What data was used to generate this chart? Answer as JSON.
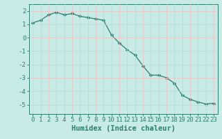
{
  "x": [
    0,
    1,
    2,
    3,
    4,
    5,
    6,
    7,
    8,
    9,
    10,
    11,
    12,
    13,
    14,
    15,
    16,
    17,
    18,
    19,
    20,
    21,
    22,
    23
  ],
  "y": [
    1.1,
    1.3,
    1.7,
    1.9,
    1.7,
    1.8,
    1.6,
    1.5,
    1.4,
    1.3,
    0.2,
    -0.4,
    -0.9,
    -1.3,
    -2.1,
    -2.8,
    -2.8,
    -3.0,
    -3.4,
    -4.3,
    -4.6,
    -4.8,
    -4.95,
    -4.9
  ],
  "xlabel": "Humidex (Indice chaleur)",
  "xlim": [
    -0.5,
    23.5
  ],
  "ylim": [
    -5.7,
    2.5
  ],
  "yticks": [
    -5,
    -4,
    -3,
    -2,
    -1,
    0,
    1,
    2
  ],
  "xticks": [
    0,
    1,
    2,
    3,
    4,
    5,
    6,
    7,
    8,
    9,
    10,
    11,
    12,
    13,
    14,
    15,
    16,
    17,
    18,
    19,
    20,
    21,
    22,
    23
  ],
  "line_color": "#2E7D6E",
  "marker": "D",
  "marker_size": 2.2,
  "bg_color": "#C8EBE8",
  "plot_bg_color": "#C8EBE8",
  "grid_color": "#E8C8C8",
  "axes_color": "#2E7D6E",
  "tick_label_color": "#2E7D6E",
  "xlabel_color": "#2E7D6E",
  "xlabel_fontsize": 7.5,
  "tick_fontsize": 6.5
}
